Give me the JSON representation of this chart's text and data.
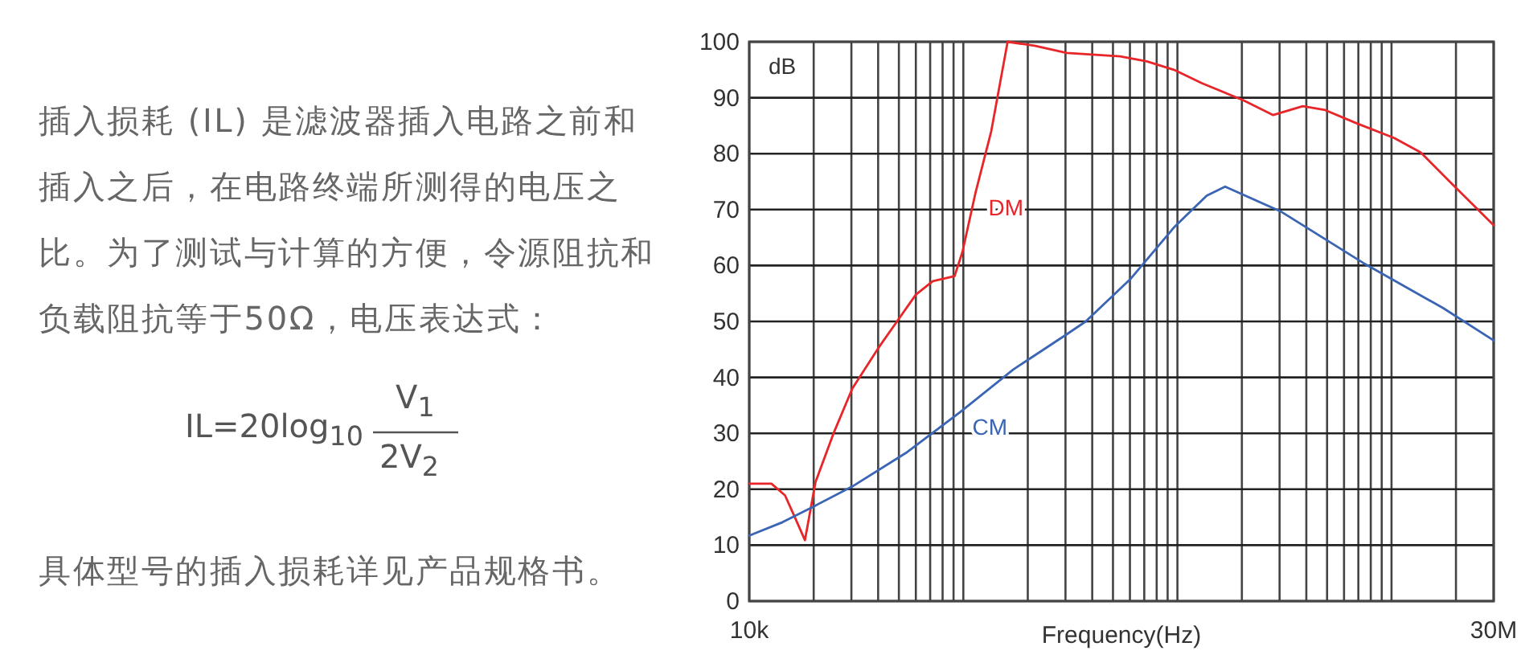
{
  "chart_data": [
    {
      "type": "other",
      "annotations": [
        "插入损耗 (IL) 是滤波器插入电路之前和插入之后，在电路终端所测得的电压之比。为了测试与计算的方便，令源阻抗和负载阻抗等于50Ω，电压表达式：",
        "IL=20log$_{10}$",
        "V$_{1}$",
        "2V$_{2}$",
        "具体型号的插入损耗详见产品规格书。"
      ]
    },
    {
      "type": "line",
      "xlabel": "Frequency(Hz)",
      "ylabel": "dB",
      "log": "x",
      "grid": true,
      "xlim": [
        10000,
        30000000
      ],
      "ylim": [
        0,
        100
      ],
      "xticks": [
        {
          "value": 10000,
          "label": "10k"
        },
        {
          "value": 20000,
          "label": null
        },
        {
          "value": 30000,
          "label": null
        },
        {
          "value": 40000,
          "label": null
        },
        {
          "value": 50000,
          "label": null
        },
        {
          "value": 60000,
          "label": null
        },
        {
          "value": 70000,
          "label": null
        },
        {
          "value": 80000,
          "label": null
        },
        {
          "value": 90000,
          "label": null
        },
        {
          "value": 100000,
          "label": null
        },
        {
          "value": 200000,
          "label": null
        },
        {
          "value": 300000,
          "label": null
        },
        {
          "value": 400000,
          "label": null
        },
        {
          "value": 500000,
          "label": null
        },
        {
          "value": 600000,
          "label": null
        },
        {
          "value": 700000,
          "label": null
        },
        {
          "value": 800000,
          "label": null
        },
        {
          "value": 900000,
          "label": null
        },
        {
          "value": 1000000,
          "label": null
        },
        {
          "value": 2000000,
          "label": null
        },
        {
          "value": 3000000,
          "label": null
        },
        {
          "value": 4000000,
          "label": null
        },
        {
          "value": 5000000,
          "label": null
        },
        {
          "value": 6000000,
          "label": null
        },
        {
          "value": 7000000,
          "label": null
        },
        {
          "value": 8000000,
          "label": null
        },
        {
          "value": 9000000,
          "label": null
        },
        {
          "value": 10000000,
          "label": null
        },
        {
          "value": 20000000,
          "label": null
        },
        {
          "value": 30000000,
          "label": "30M"
        }
      ],
      "yticks": [
        0,
        10,
        20,
        30,
        40,
        50,
        60,
        70,
        80,
        90,
        100
      ],
      "series": [
        {
          "name": "DM",
          "color": "#e8262a",
          "x": [
            10000,
            12700,
            14700,
            16500,
            18200,
            20400,
            24700,
            30300,
            40000,
            49000,
            60000,
            72000,
            91000,
            99000,
            114000,
            135000,
            161000,
            215000,
            304000,
            540000,
            720000,
            963000,
            1300000,
            2040000,
            2800000,
            3850000,
            4900000,
            6900000,
            10300000,
            13700000,
            19400000,
            30000000
          ],
          "values": [
            21,
            21,
            18.9,
            14.6,
            10.9,
            21.3,
            29.9,
            38,
            45.2,
            50,
            54.8,
            57.2,
            58.1,
            62.4,
            73,
            84,
            100,
            99.3,
            98,
            97.4,
            96.5,
            95,
            92.6,
            89.5,
            86.9,
            88.5,
            87.8,
            85.4,
            82.8,
            80.2,
            74.4,
            67.2
          ]
        },
        {
          "name": "CM",
          "color": "#3a64b4",
          "x": [
            10000,
            14300,
            20200,
            30300,
            54000,
            96000,
            171000,
            304000,
            373000,
            607000,
            963000,
            1370000,
            1670000,
            3060000,
            7350000,
            17400000,
            30000000
          ],
          "values": [
            11.7,
            14.1,
            17,
            20.5,
            26.5,
            33.7,
            41.4,
            47.7,
            50,
            57.7,
            66.8,
            72.5,
            74.1,
            69.6,
            60.5,
            52.4,
            46.6
          ]
        }
      ]
    }
  ]
}
